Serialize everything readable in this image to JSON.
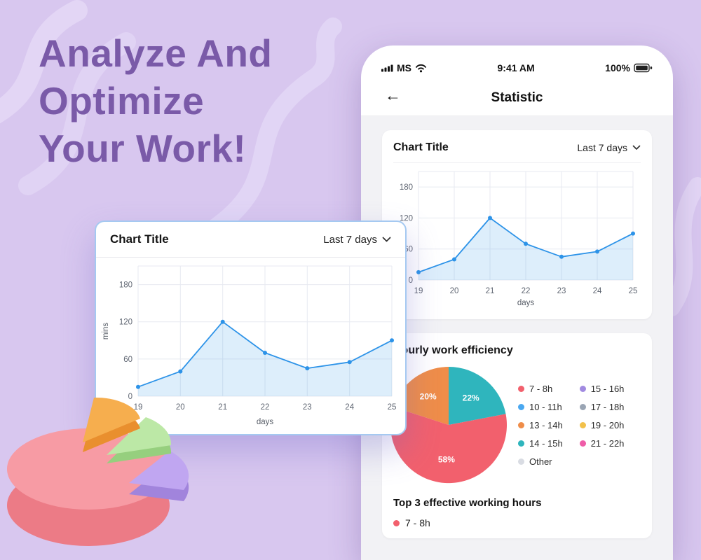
{
  "hero": {
    "line1": "Analyze And",
    "line2": "Optimize",
    "line3": "Your Work!"
  },
  "icons": {
    "back": "←"
  },
  "phone": {
    "status": {
      "carrier": "MS",
      "time": "9:41 AM",
      "battery": "100%"
    },
    "header": {
      "title": "Statistic"
    },
    "chart_card": {
      "title": "Chart Title",
      "range": "Last 7 days"
    },
    "efficiency_card": {
      "title": "Hourly work efficiency",
      "top_hours_title": "Top 3 effective working hours"
    }
  },
  "popup": {
    "title": "Chart Title",
    "range": "Last 7 days"
  },
  "legend": [
    {
      "label": "7 - 8h",
      "color": "#f2606d"
    },
    {
      "label": "10 - 11h",
      "color": "#4aa8f0"
    },
    {
      "label": "13 - 14h",
      "color": "#ef8d49"
    },
    {
      "label": "14 - 15h",
      "color": "#2fb5bd"
    },
    {
      "label": "Other",
      "color": "#d9dce3"
    },
    {
      "label": "15 - 16h",
      "color": "#a18ae0"
    },
    {
      "label": "17 - 18h",
      "color": "#9aa5b4"
    },
    {
      "label": "19 - 20h",
      "color": "#f2c14b"
    },
    {
      "label": "21 - 22h",
      "color": "#ef5da8"
    }
  ],
  "chart_data": [
    {
      "id": "line-popup",
      "type": "line",
      "title": "Chart Title",
      "x": [
        19,
        20,
        21,
        22,
        23,
        24,
        25
      ],
      "values": [
        15,
        40,
        120,
        70,
        45,
        55,
        90
      ],
      "yticks": [
        0,
        60,
        120,
        180
      ],
      "ymax": 210,
      "xlabel": "days",
      "ylabel": "mins",
      "grid": true,
      "line_color": "#2d93e8",
      "fill_color": "rgba(45,147,232,0.16)"
    },
    {
      "id": "line-phone",
      "type": "line",
      "title": "Chart Title",
      "x": [
        19,
        20,
        21,
        22,
        23,
        24,
        25
      ],
      "values": [
        15,
        40,
        120,
        70,
        45,
        55,
        90
      ],
      "yticks": [
        0,
        60,
        120,
        180
      ],
      "ymax": 210,
      "xlabel": "days",
      "ylabel": "",
      "grid": true,
      "line_color": "#2d93e8",
      "fill_color": "rgba(45,147,232,0.16)"
    },
    {
      "id": "pie-efficiency",
      "type": "pie",
      "start_angle": 162,
      "slices": [
        {
          "label": "20%",
          "value": 20,
          "color": "#ef8d49"
        },
        {
          "label": "22%",
          "value": 22,
          "color": "#2fb5bd"
        },
        {
          "label": "58%",
          "value": 58,
          "color": "#f2606d"
        }
      ]
    }
  ]
}
